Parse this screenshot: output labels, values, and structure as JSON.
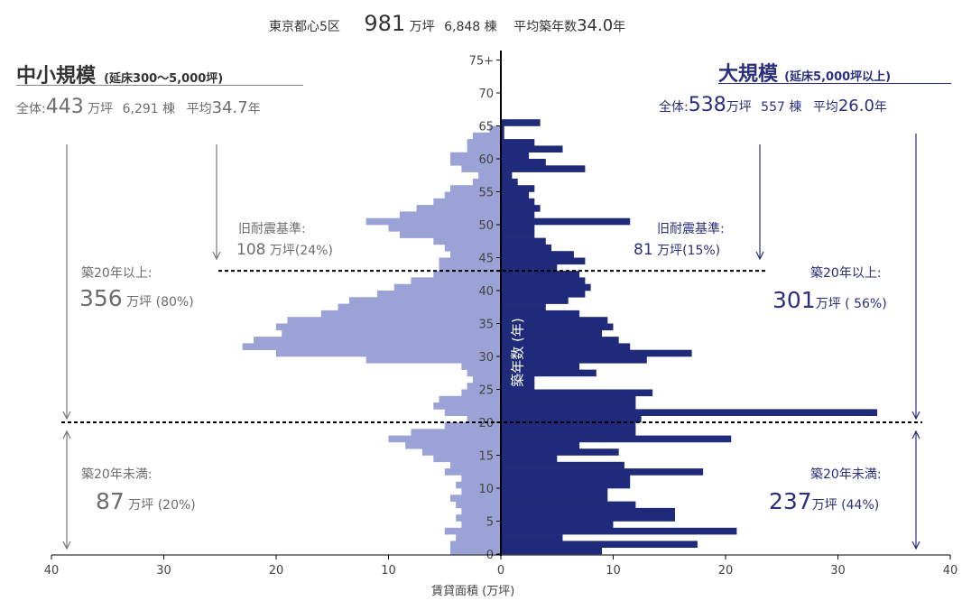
{
  "header": {
    "region": "東京都心5区",
    "total_area": "981",
    "unit_area": "万坪",
    "total_buildings": "6,848",
    "unit_buildings": "棟",
    "avg_label": "平均築年数",
    "avg_value": "34.0",
    "avg_unit": "年"
  },
  "left": {
    "title": "中小規模",
    "subtitle": "(延床300～5,000坪)",
    "total_prefix": "全体:",
    "total_area": "443",
    "unit_area": "万坪",
    "buildings": "6,291",
    "unit_buildings": "棟",
    "avg_label": "平均",
    "avg_value": "34.7",
    "avg_unit": "年",
    "old_quake_label": "旧耐震基準:",
    "old_quake_value": "108",
    "old_quake_unit": "万坪(24%)",
    "over20_label": "築20年以上:",
    "over20_value": "356",
    "over20_unit": "万坪 (80%)",
    "under20_label": "築20年未満:",
    "under20_value": "87",
    "under20_unit": "万坪 (20%)"
  },
  "right": {
    "title": "大規模",
    "subtitle": "(延床5,000坪以上)",
    "total_prefix": "全体:",
    "total_area": "538",
    "unit_area": "万坪",
    "buildings": "557",
    "unit_buildings": "棟",
    "avg_label": "平均",
    "avg_value": "26.0",
    "avg_unit": "年",
    "old_quake_label": "旧耐震基準:",
    "old_quake_value": "81",
    "old_quake_unit": "万坪(15%)",
    "over20_label": "築20年以上:",
    "over20_value": "301",
    "over20_unit": "万坪 ( 56%)",
    "under20_label": "築20年未満:",
    "under20_value": "237",
    "under20_unit": "万坪 (44%)"
  },
  "chart_data": {
    "type": "bar",
    "orientation": "horizontal-population-pyramid",
    "xlabel": "賃貸面積 (万坪)",
    "ylabel": "築年数 (年)",
    "x_ticks": [
      40,
      30,
      20,
      10,
      0,
      10,
      20,
      30,
      40
    ],
    "y_ticks": [
      "0",
      "5",
      "10",
      "15",
      "20",
      "25",
      "30",
      "35",
      "40",
      "45",
      "50",
      "55",
      "60",
      "65",
      "70",
      "75+"
    ],
    "xlim": [
      -40,
      40
    ],
    "ylim": [
      0,
      75
    ],
    "reference_lines": [
      {
        "age": 20,
        "style": "dashed"
      },
      {
        "age": 43,
        "style": "dashed"
      }
    ],
    "colors": {
      "small": "#9aa2d6",
      "large": "#1f2a7a"
    },
    "series": [
      {
        "name": "中小規模",
        "side": "left",
        "ages": [
          0,
          1,
          2,
          3,
          4,
          5,
          6,
          7,
          8,
          9,
          10,
          11,
          12,
          13,
          14,
          15,
          16,
          17,
          18,
          19,
          20,
          21,
          22,
          23,
          24,
          25,
          26,
          27,
          28,
          29,
          30,
          31,
          32,
          33,
          34,
          35,
          36,
          37,
          38,
          39,
          40,
          41,
          42,
          43,
          44,
          45,
          46,
          47,
          48,
          49,
          50,
          51,
          52,
          53,
          54,
          55,
          56,
          57,
          58,
          59,
          60,
          61,
          62,
          63,
          64
        ],
        "values": [
          4.5,
          4.5,
          4.0,
          5.0,
          3.5,
          4.0,
          3.5,
          4.0,
          4.5,
          3.5,
          4.0,
          3.5,
          5.0,
          4.5,
          6.0,
          7.0,
          8.5,
          10.0,
          8.0,
          5.0,
          3.0,
          5.0,
          6.0,
          5.5,
          3.5,
          3.0,
          2.5,
          3.0,
          3.5,
          12.0,
          20.0,
          23.0,
          22.0,
          19.5,
          20.0,
          19.0,
          16.0,
          14.5,
          13.5,
          11.0,
          9.5,
          8.0,
          6.0,
          5.5,
          5.5,
          4.5,
          5.0,
          6.0,
          9.0,
          10.0,
          12.0,
          9.0,
          7.5,
          6.0,
          5.0,
          4.5,
          2.5,
          2.0,
          3.5,
          4.5,
          4.5,
          3.0,
          3.0,
          2.5,
          1.0
        ]
      },
      {
        "name": "大規模",
        "side": "right",
        "ages": [
          0,
          1,
          2,
          3,
          4,
          5,
          6,
          7,
          8,
          9,
          10,
          11,
          12,
          13,
          14,
          15,
          16,
          17,
          18,
          19,
          20,
          21,
          22,
          23,
          24,
          25,
          26,
          27,
          28,
          29,
          30,
          31,
          32,
          33,
          34,
          35,
          36,
          37,
          38,
          39,
          40,
          41,
          42,
          43,
          44,
          45,
          46,
          47,
          48,
          49,
          50,
          51,
          52,
          53,
          54,
          55,
          56,
          57,
          58,
          59,
          60,
          61,
          62,
          63,
          64,
          65
        ],
        "values": [
          9.0,
          17.5,
          5.5,
          21.0,
          10.0,
          15.5,
          15.5,
          12.0,
          9.5,
          9.5,
          11.5,
          11.5,
          18.0,
          11.0,
          5.0,
          10.5,
          7.0,
          20.5,
          12.0,
          12.0,
          12.5,
          33.5,
          12.0,
          12.0,
          13.5,
          3.0,
          3.0,
          8.5,
          7.0,
          13.0,
          17.0,
          11.5,
          10.5,
          9.0,
          10.0,
          9.5,
          7.0,
          4.0,
          6.0,
          7.5,
          8.0,
          7.5,
          7.0,
          5.0,
          7.5,
          6.5,
          4.5,
          4.0,
          3.0,
          3.0,
          11.5,
          3.0,
          3.5,
          3.0,
          2.5,
          3.0,
          1.5,
          1.0,
          7.5,
          4.0,
          2.5,
          5.5,
          3.0,
          0.3,
          0.3,
          3.5
        ]
      }
    ],
    "annotations": [
      "旧耐震基準: 108 万坪(24%)",
      "旧耐震基準: 81 万坪(15%)",
      "築20年以上: 356 万坪 (80%)",
      "築20年以上: 301万坪 ( 56%)",
      "築20年未満: 87 万坪 (20%)",
      "築20年未満: 237万坪 (44%)"
    ]
  }
}
